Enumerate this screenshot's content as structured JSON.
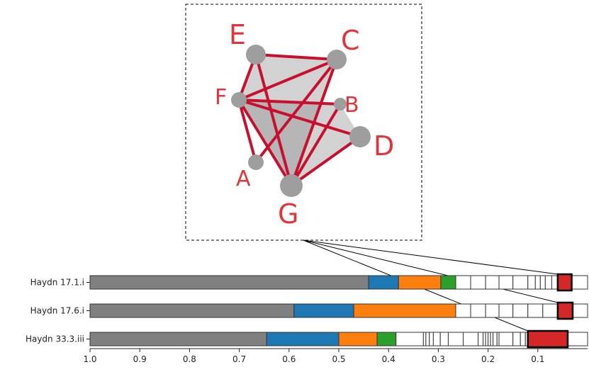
{
  "inset": {
    "nodes": [
      {
        "id": "E",
        "label": "E"
      },
      {
        "id": "C",
        "label": "C"
      },
      {
        "id": "F",
        "label": "F"
      },
      {
        "id": "B",
        "label": "B"
      },
      {
        "id": "D",
        "label": "D"
      },
      {
        "id": "A",
        "label": "A"
      },
      {
        "id": "G",
        "label": "G"
      }
    ],
    "edges": [
      [
        "E",
        "C"
      ],
      [
        "E",
        "G"
      ],
      [
        "C",
        "F"
      ],
      [
        "C",
        "A"
      ],
      [
        "C",
        "G"
      ],
      [
        "F",
        "B"
      ],
      [
        "F",
        "D"
      ],
      [
        "F",
        "A"
      ],
      [
        "F",
        "G"
      ],
      [
        "B",
        "G"
      ],
      [
        "D",
        "G"
      ],
      [
        "E",
        "F"
      ]
    ],
    "faces": [
      [
        "E",
        "C",
        "F"
      ],
      [
        "F",
        "B",
        "D"
      ],
      [
        "F",
        "D",
        "G"
      ],
      [
        "F",
        "C",
        "G"
      ]
    ],
    "colors": {
      "node": "#9e9e9e",
      "edge": "#c8102e",
      "face": "#8a8a8a",
      "label": "#e0353b"
    }
  },
  "chart_data": {
    "type": "bar",
    "orientation": "horizontal-stacked",
    "xlim": [
      1.0,
      0.0
    ],
    "xticks": [
      "1.0",
      "0.9",
      "0.8",
      "0.7",
      "0.6",
      "0.5",
      "0.4",
      "0.3",
      "0.2",
      "0.1"
    ],
    "colors": {
      "gray": "#808080",
      "blue": "#1f77b4",
      "orange": "#ff7f0e",
      "green": "#2ca02c",
      "red": "#d62728",
      "white": "#ffffff",
      "edge": "#333333"
    },
    "rows": [
      {
        "label": "Haydn 17.1.i",
        "colored_segments": [
          {
            "color": "gray",
            "from": 1.0,
            "to": 0.44
          },
          {
            "color": "blue",
            "from": 0.44,
            "to": 0.38
          },
          {
            "color": "orange",
            "from": 0.38,
            "to": 0.295
          },
          {
            "color": "green",
            "from": 0.295,
            "to": 0.265
          }
        ],
        "white_boundaries": [
          0.265,
          0.235,
          0.205,
          0.178,
          0.15,
          0.12,
          0.105,
          0.095,
          0.085,
          0.072,
          0.06
        ],
        "highlight": {
          "from": 0.06,
          "to": 0.032
        }
      },
      {
        "label": "Haydn 17.6.i",
        "colored_segments": [
          {
            "color": "gray",
            "from": 1.0,
            "to": 0.59
          },
          {
            "color": "blue",
            "from": 0.59,
            "to": 0.47
          },
          {
            "color": "orange",
            "from": 0.47,
            "to": 0.265
          }
        ],
        "white_boundaries": [
          0.265,
          0.235,
          0.205,
          0.178,
          0.15,
          0.12,
          0.09,
          0.06
        ],
        "highlight": {
          "from": 0.06,
          "to": 0.03
        }
      },
      {
        "label": "Haydn 33.3.iii",
        "colored_segments": [
          {
            "color": "gray",
            "from": 1.0,
            "to": 0.645
          },
          {
            "color": "blue",
            "from": 0.645,
            "to": 0.5
          },
          {
            "color": "orange",
            "from": 0.5,
            "to": 0.423
          },
          {
            "color": "green",
            "from": 0.423,
            "to": 0.385
          }
        ],
        "white_boundaries": [
          0.385,
          0.33,
          0.325,
          0.318,
          0.31,
          0.296,
          0.28,
          0.25,
          0.22,
          0.21,
          0.205,
          0.2,
          0.195,
          0.19,
          0.182,
          0.178,
          0.15,
          0.135,
          0.125,
          0.12
        ],
        "highlight": {
          "from": 0.12,
          "to": 0.04
        }
      }
    ]
  }
}
